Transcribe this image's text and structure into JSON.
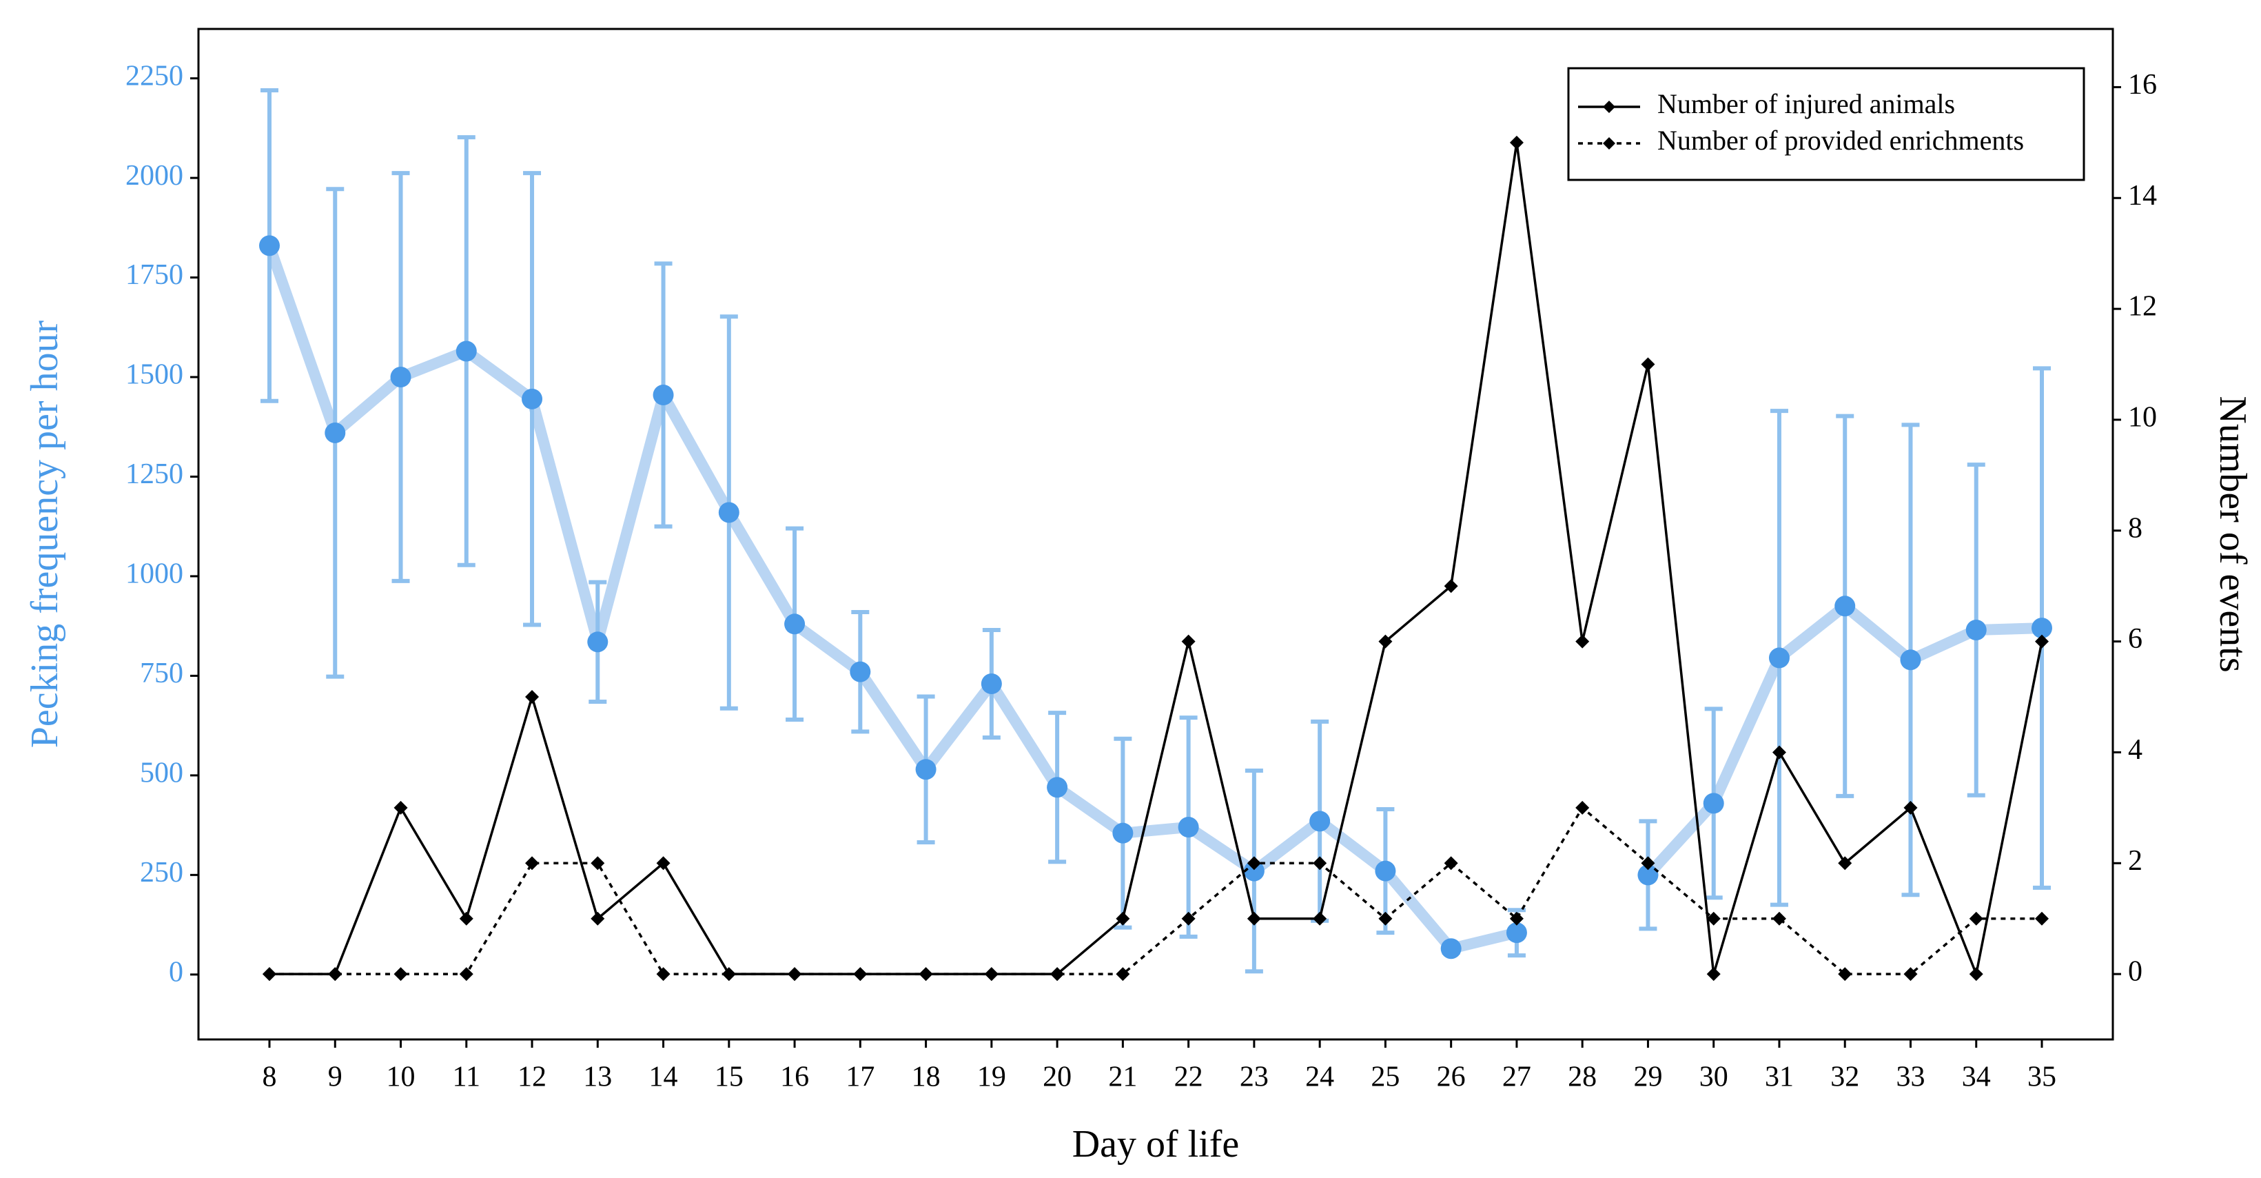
{
  "chart_data": {
    "type": "line",
    "xlabel": "Day of life",
    "ylabel": "Pecking frequency per hour",
    "y2label": "Number of events",
    "categories": [
      "8",
      "9",
      "10",
      "11",
      "12",
      "13",
      "14",
      "15",
      "16",
      "17",
      "18",
      "19",
      "20",
      "21",
      "22",
      "23",
      "24",
      "25",
      "26",
      "27",
      "28",
      "29",
      "30",
      "31",
      "32",
      "33",
      "34",
      "35"
    ],
    "series": [
      {
        "color": "#4a9ae8",
        "line_color": "#b9d5f3",
        "error_color": "#8ec0ee",
        "axis": "y",
        "values": [
          1830,
          1360,
          1500,
          1565,
          1445,
          835,
          1455,
          1160,
          880,
          760,
          515,
          730,
          470,
          355,
          370,
          260,
          385,
          260,
          65,
          105,
          null,
          250,
          430,
          795,
          925,
          790,
          865,
          870
        ],
        "errors": [
          390,
          612,
          512,
          537,
          567,
          150,
          330,
          492,
          240,
          150,
          183,
          135,
          187,
          237,
          275,
          252,
          250,
          155,
          10,
          57,
          null,
          135,
          237,
          620,
          477,
          590,
          415,
          652
        ]
      },
      {
        "name": "Number of injured animals",
        "color": "#000000",
        "dash": "solid",
        "axis": "y2",
        "values": [
          0,
          0,
          3,
          1,
          5,
          1,
          2,
          0,
          0,
          0,
          0,
          0,
          0,
          1,
          6,
          1,
          1,
          6,
          7,
          15,
          6,
          11,
          0,
          4,
          2,
          3,
          0,
          6
        ]
      },
      {
        "name": "Number of provided enrichments",
        "color": "#000000",
        "dash": "dotted",
        "axis": "y2",
        "values": [
          0,
          0,
          0,
          0,
          2,
          2,
          0,
          0,
          0,
          0,
          0,
          0,
          0,
          0,
          1,
          2,
          2,
          1,
          2,
          1,
          3,
          2,
          1,
          1,
          0,
          0,
          1,
          1
        ]
      }
    ],
    "ylim": [
      -163,
      2374
    ],
    "yticks": [
      0,
      250,
      500,
      750,
      1000,
      1250,
      1500,
      1750,
      2000,
      2250
    ],
    "y2lim": [
      -1.18,
      17.05
    ],
    "y2ticks": [
      0,
      2,
      4,
      6,
      8,
      10,
      12,
      14,
      16
    ],
    "legend": "upper right"
  }
}
